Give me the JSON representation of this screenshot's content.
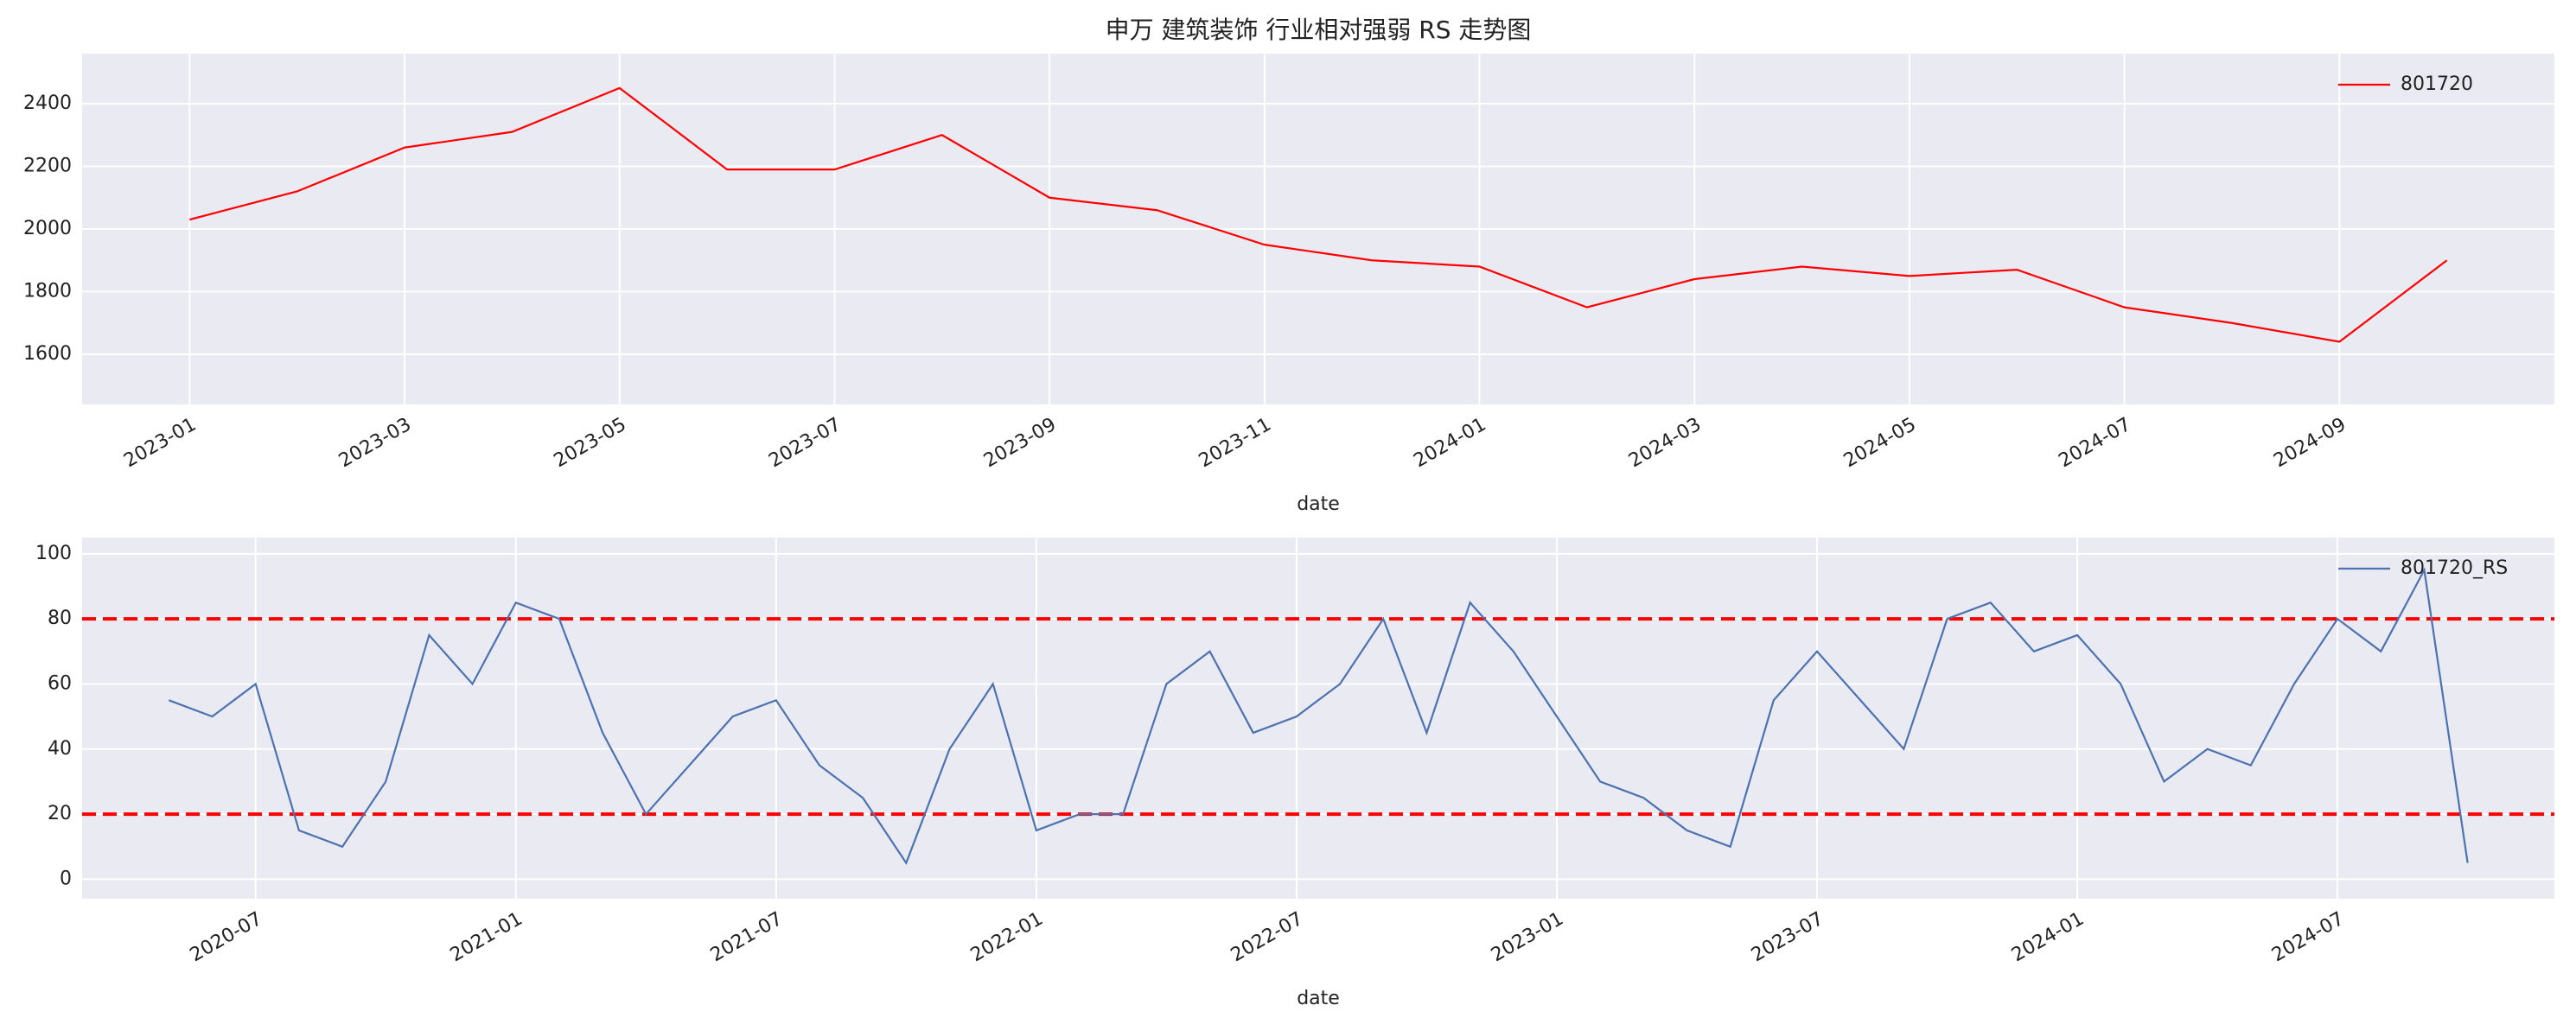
{
  "chart_data": [
    {
      "type": "line",
      "title": "申万 建筑装饰 行业相对强弱 RS 走势图",
      "xlabel": "date",
      "x": [
        "2023-01",
        "2023-02",
        "2023-03",
        "2023-04",
        "2023-05",
        "2023-06",
        "2023-07",
        "2023-08",
        "2023-09",
        "2023-10",
        "2023-11",
        "2023-12",
        "2024-01",
        "2024-02",
        "2024-03",
        "2024-04",
        "2024-05",
        "2024-06",
        "2024-07",
        "2024-08",
        "2024-09",
        "2024-10"
      ],
      "series": [
        {
          "name": "801720",
          "color": "#ff0000",
          "values": [
            2030,
            2120,
            2260,
            2310,
            2450,
            2190,
            2190,
            2300,
            2100,
            2060,
            1950,
            1900,
            1880,
            1750,
            1840,
            1880,
            1850,
            1870,
            1750,
            1700,
            1640,
            1900
          ]
        }
      ],
      "xlim": [
        "2022-12",
        "2024-11"
      ],
      "xticks": [
        "2023-01",
        "2023-03",
        "2023-05",
        "2023-07",
        "2023-09",
        "2023-11",
        "2024-01",
        "2024-03",
        "2024-05",
        "2024-07",
        "2024-09"
      ],
      "ylim": [
        1440,
        2560
      ],
      "yticks": [
        1600,
        1800,
        2000,
        2200,
        2400
      ],
      "grid": true,
      "legend": "upper right"
    },
    {
      "type": "line",
      "xlabel": "date",
      "x": [
        "2020-05",
        "2020-06",
        "2020-07",
        "2020-08",
        "2020-09",
        "2020-10",
        "2020-11",
        "2020-12",
        "2021-01",
        "2021-02",
        "2021-03",
        "2021-04",
        "2021-05",
        "2021-06",
        "2021-07",
        "2021-08",
        "2021-09",
        "2021-10",
        "2021-11",
        "2021-12",
        "2022-01",
        "2022-02",
        "2022-03",
        "2022-04",
        "2022-05",
        "2022-06",
        "2022-07",
        "2022-08",
        "2022-09",
        "2022-10",
        "2022-11",
        "2022-12",
        "2023-01",
        "2023-02",
        "2023-03",
        "2023-04",
        "2023-05",
        "2023-06",
        "2023-07",
        "2023-08",
        "2023-09",
        "2023-10",
        "2023-11",
        "2023-12",
        "2024-01",
        "2024-02",
        "2024-03",
        "2024-04",
        "2024-05",
        "2024-06",
        "2024-07",
        "2024-08",
        "2024-09",
        "2024-10"
      ],
      "series": [
        {
          "name": "801720_RS",
          "color": "#4c72b0",
          "values": [
            55,
            50,
            60,
            15,
            10,
            30,
            75,
            60,
            85,
            80,
            45,
            20,
            35,
            50,
            55,
            35,
            25,
            5,
            40,
            60,
            15,
            20,
            20,
            60,
            70,
            45,
            50,
            60,
            80,
            45,
            85,
            70,
            50,
            30,
            25,
            15,
            10,
            55,
            70,
            55,
            40,
            80,
            85,
            70,
            75,
            60,
            30,
            40,
            35,
            60,
            80,
            70,
            95,
            5
          ]
        }
      ],
      "hlines": [
        20,
        80
      ],
      "hline_color": "#ff0000",
      "xlim": [
        "2020-03",
        "2024-12"
      ],
      "xticks": [
        "2020-07",
        "2021-01",
        "2021-07",
        "2022-01",
        "2022-07",
        "2023-01",
        "2023-07",
        "2024-01",
        "2024-07"
      ],
      "ylim": [
        -6,
        105
      ],
      "yticks": [
        0,
        20,
        40,
        60,
        80,
        100
      ],
      "grid": true,
      "legend": "upper right"
    }
  ]
}
